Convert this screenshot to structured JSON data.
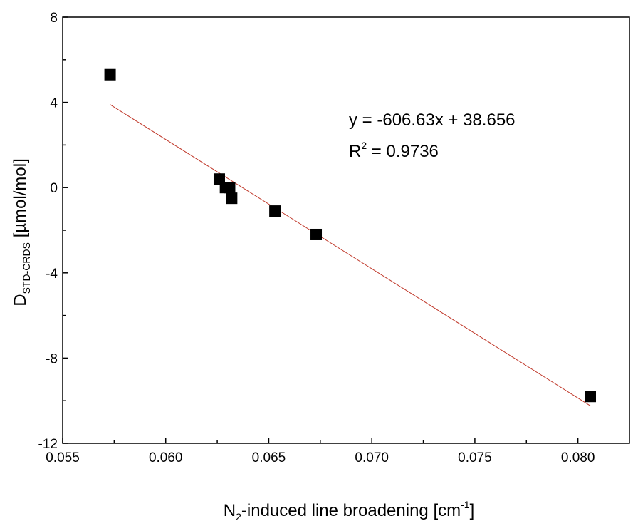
{
  "chart_data": {
    "type": "scatter",
    "title": "",
    "xlabel": {
      "main": "N",
      "main_sub": "2",
      "rest": "-induced line broadening [cm",
      "sup": "-1",
      "end": "]"
    },
    "ylabel": {
      "main": "D",
      "sub": "STD-CRDS",
      "rest": " [µmol/mol]"
    },
    "xlim": [
      0.055,
      0.0825
    ],
    "ylim": [
      -12,
      8
    ],
    "xticks": [
      0.055,
      0.06,
      0.065,
      0.07,
      0.075,
      0.08
    ],
    "xtick_labels": [
      "0.055",
      "0.060",
      "0.065",
      "0.070",
      "0.075",
      "0.080"
    ],
    "yticks": [
      -12,
      -8,
      -4,
      0,
      4,
      8
    ],
    "ytick_labels": [
      "-12",
      "-8",
      "-4",
      "0",
      "4",
      "8"
    ],
    "grid": false,
    "series": [
      {
        "marker": "square",
        "color": "#000000",
        "x": [
          0.0573,
          0.0626,
          0.0629,
          0.0631,
          0.0632,
          0.0653,
          0.0673,
          0.0806
        ],
        "y": [
          5.3,
          0.4,
          0.0,
          0.0,
          -0.5,
          -1.1,
          -2.2,
          -9.8
        ]
      }
    ],
    "trendline": {
      "color": "#c0392b",
      "slope": -606.63,
      "intercept": 38.656,
      "x_range": [
        0.0573,
        0.0806
      ]
    },
    "annotations": {
      "equation": "y = -606.63x + 38.656",
      "r2_prefix": "R",
      "r2_sup": "2",
      "r2_value": " = 0.9736"
    }
  }
}
